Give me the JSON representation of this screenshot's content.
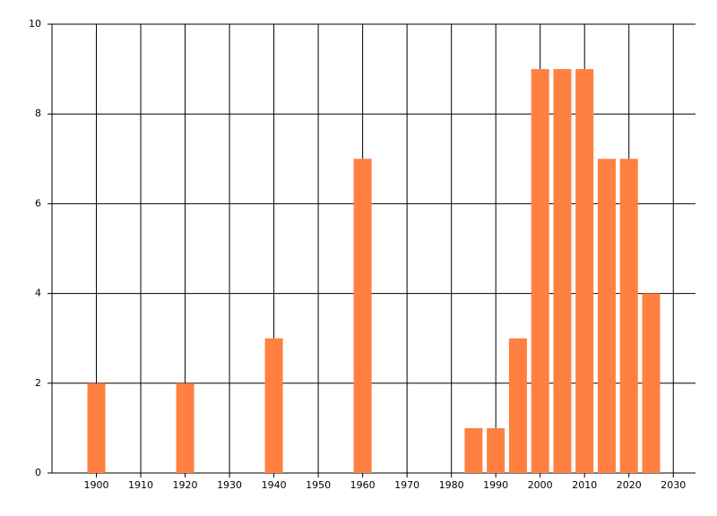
{
  "chart_data": {
    "type": "bar",
    "x": [
      1900,
      1920,
      1940,
      1960,
      1985,
      1990,
      1995,
      2000,
      2005,
      2010,
      2015,
      2020,
      2025
    ],
    "values": [
      2,
      2,
      3,
      7,
      1,
      1,
      3,
      9,
      9,
      9,
      7,
      7,
      4
    ],
    "color": "#ff8040",
    "xlim": [
      1890,
      2035
    ],
    "xticks": [
      1900,
      1910,
      1920,
      1930,
      1940,
      1950,
      1960,
      1970,
      1980,
      1990,
      2000,
      2010,
      2020,
      2030
    ],
    "ylim": [
      0,
      10
    ],
    "yticks": [
      0,
      2,
      4,
      6,
      8,
      10
    ],
    "grid": true
  }
}
